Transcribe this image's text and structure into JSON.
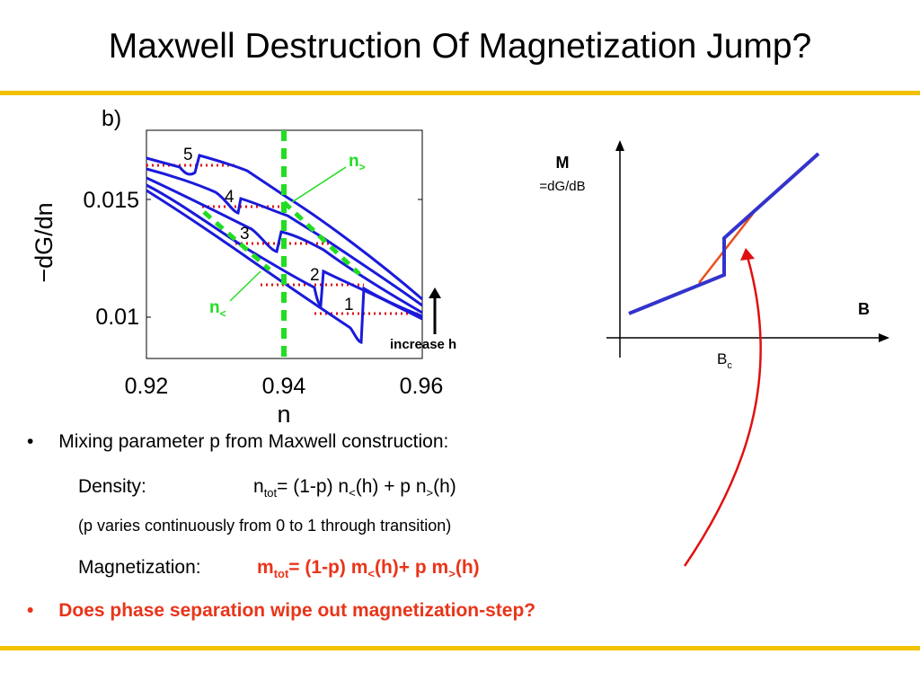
{
  "slide": {
    "title": "Maxwell Destruction Of Magnetization Jump?",
    "accent_color": "#f2c200"
  },
  "left_plot": {
    "panel_label": "b)",
    "ylabel": "−dG/dn",
    "xlabel": "n",
    "x_ticks": [
      "0.92",
      "0.94",
      "0.96"
    ],
    "y_ticks": [
      "0.015",
      "0.01"
    ],
    "curve_labels": [
      "5",
      "4",
      "3",
      "2",
      "1"
    ],
    "n_greater_base": "n",
    "n_greater_sub": ">",
    "n_less_base": "n",
    "n_less_sub": "<",
    "arrow_label": "increase h",
    "curve_color": "#1a1adb",
    "maxwell_color": "#e01010",
    "phase_boundary_color": "#22dd22"
  },
  "right_plot": {
    "y_label": "M",
    "y_sublabel": "=dG/dB",
    "x_label": "B",
    "critical_base": "B",
    "critical_sub": "c",
    "step_color": "#3333cc",
    "maxwell_color": "#e8501a"
  },
  "bullets": {
    "b1": "Mixing parameter p from Maxwell construction:",
    "density_label": "Density:",
    "density_eq": {
      "p1": "n",
      "s1": "tot",
      "p2": "= (1-p) n",
      "s2": "<",
      "p3": "(h)  + p n",
      "s3": ">",
      "p4": "(h)"
    },
    "note": "(p varies continuously from 0 to 1 through transition)",
    "magnet_label": "Magnetization:",
    "magnet_eq": {
      "p1": "m",
      "s1": "tot",
      "p2": "= (1-p) m",
      "s2": "<",
      "p3": "(h)+ p m",
      "s3": ">",
      "p4": "(h)"
    },
    "b2": "Does phase separation wipe out magnetization-step?",
    "bullet_char": "•"
  }
}
